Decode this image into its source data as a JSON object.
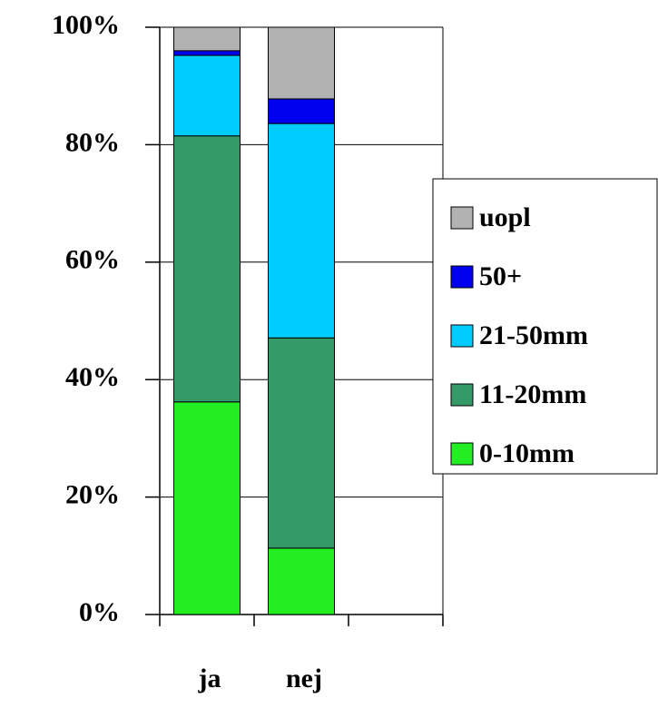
{
  "chart_data": {
    "type": "stacked_bar",
    "categories": [
      "ja",
      "nej",
      null
    ],
    "series": [
      {
        "name": "0-10mm",
        "color": "#22ee22",
        "values": [
          36.2,
          11.3,
          null
        ]
      },
      {
        "name": "11-20mm",
        "color": "#339966",
        "values": [
          45.3,
          35.8,
          null
        ]
      },
      {
        "name": "21-50mm",
        "color": "#00ccff",
        "values": [
          13.7,
          36.5,
          null
        ]
      },
      {
        "name": "50+",
        "color": "#0000ee",
        "values": [
          0.8,
          4.2,
          null
        ]
      },
      {
        "name": "uopl",
        "color": "#b2b2b2",
        "values": [
          4.0,
          12.2,
          null
        ]
      }
    ],
    "ylim": [
      0,
      100
    ],
    "yticks": [
      {
        "value": 0,
        "label": "0%"
      },
      {
        "value": 20,
        "label": "20%"
      },
      {
        "value": 40,
        "label": "40%"
      },
      {
        "value": 60,
        "label": "60%"
      },
      {
        "value": 80,
        "label": "80%"
      },
      {
        "value": 100,
        "label": "100%"
      }
    ],
    "grid": true
  }
}
